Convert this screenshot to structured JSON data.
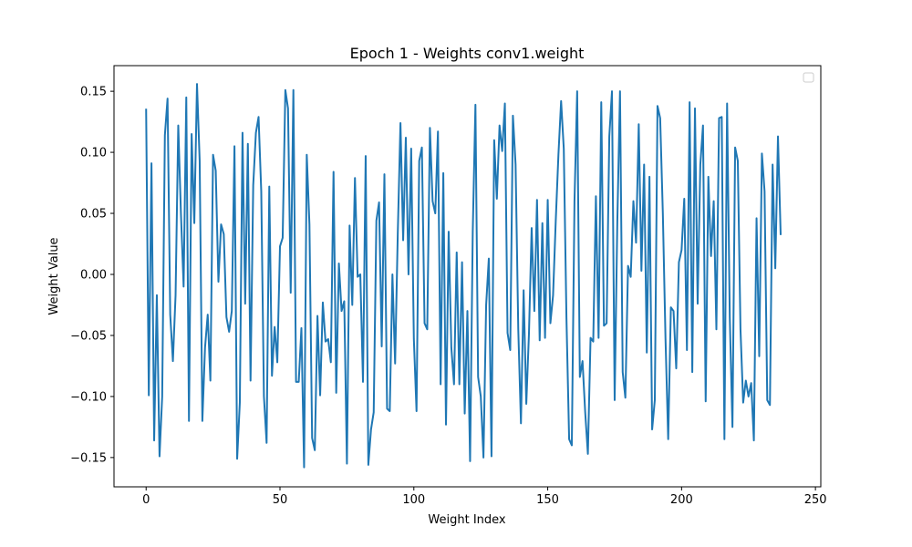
{
  "chart_data": {
    "type": "line",
    "title": "Epoch 1 - Weights conv1.weight",
    "xlabel": "Weight Index",
    "ylabel": "Weight Value",
    "xlim": [
      -12,
      252
    ],
    "ylim": [
      -0.174,
      0.171
    ],
    "xticks": [
      0,
      50,
      100,
      150,
      200,
      250
    ],
    "yticks": [
      -0.15,
      -0.1,
      -0.05,
      0.0,
      0.05,
      0.1,
      0.15
    ],
    "ytick_labels": [
      "−0.15",
      "−0.10",
      "−0.05",
      "0.00",
      "0.05",
      "0.10",
      "0.15"
    ],
    "legend": "top-right",
    "legend_entries": [],
    "series": [
      {
        "name": "conv1.weight",
        "color": "#1f77b4",
        "values": [
          0.135,
          -0.099,
          0.091,
          -0.136,
          -0.017,
          -0.149,
          -0.1,
          0.114,
          0.144,
          -0.033,
          -0.071,
          -0.017,
          0.122,
          0.05,
          -0.01,
          0.145,
          -0.12,
          0.115,
          0.042,
          0.156,
          0.093,
          -0.12,
          -0.06,
          -0.033,
          -0.087,
          0.098,
          0.085,
          -0.006,
          0.041,
          0.033,
          -0.035,
          -0.047,
          -0.03,
          0.105,
          -0.151,
          -0.105,
          0.116,
          -0.024,
          0.107,
          -0.087,
          0.073,
          0.116,
          0.129,
          0.068,
          -0.1,
          -0.138,
          0.072,
          -0.083,
          -0.043,
          -0.072,
          0.023,
          0.03,
          0.151,
          0.136,
          -0.015,
          0.151,
          -0.088,
          -0.088,
          -0.044,
          -0.158,
          0.098,
          0.041,
          -0.134,
          -0.144,
          -0.034,
          -0.099,
          -0.023,
          -0.055,
          -0.053,
          -0.072,
          0.084,
          -0.097,
          0.009,
          -0.03,
          -0.022,
          -0.155,
          0.04,
          -0.025,
          0.079,
          -0.002,
          0.0,
          -0.088,
          0.097,
          -0.156,
          -0.127,
          -0.113,
          0.044,
          0.059,
          -0.059,
          0.082,
          -0.11,
          -0.112,
          0.0,
          -0.073,
          0.034,
          0.124,
          0.028,
          0.112,
          0.0,
          0.103,
          -0.053,
          -0.112,
          0.093,
          0.104,
          -0.04,
          -0.045,
          0.12,
          0.06,
          0.05,
          0.117,
          -0.09,
          0.083,
          -0.123,
          0.035,
          -0.06,
          -0.09,
          0.018,
          -0.09,
          0.01,
          -0.114,
          -0.03,
          -0.153,
          0.035,
          0.139,
          -0.084,
          -0.1,
          -0.15,
          -0.025,
          0.013,
          -0.149,
          0.11,
          0.062,
          0.122,
          0.101,
          0.14,
          -0.048,
          -0.062,
          0.13,
          0.09,
          -0.045,
          -0.122,
          -0.013,
          -0.106,
          -0.048,
          0.038,
          -0.03,
          0.061,
          -0.054,
          0.042,
          -0.052,
          0.061,
          -0.04,
          -0.017,
          0.044,
          0.098,
          0.142,
          0.103,
          -0.036,
          -0.135,
          -0.14,
          0.06,
          0.15,
          -0.084,
          -0.071,
          -0.113,
          -0.147,
          -0.052,
          -0.055,
          0.064,
          -0.052,
          0.141,
          -0.042,
          -0.04,
          0.113,
          0.15,
          -0.103,
          0.043,
          0.15,
          -0.08,
          -0.101,
          0.007,
          -0.002,
          0.06,
          0.026,
          0.123,
          0.003,
          0.09,
          -0.064,
          0.08,
          -0.127,
          -0.103,
          0.138,
          0.128,
          0.05,
          -0.053,
          -0.135,
          -0.027,
          -0.03,
          -0.077,
          0.01,
          0.02,
          0.062,
          -0.062,
          0.141,
          -0.08,
          0.136,
          -0.024,
          0.09,
          0.122,
          -0.104,
          0.08,
          0.015,
          0.06,
          -0.045,
          0.128,
          0.129,
          -0.135,
          0.14,
          -0.035,
          -0.125,
          0.104,
          0.093,
          -0.045,
          -0.105,
          -0.087,
          -0.1,
          -0.089,
          -0.136,
          0.046,
          -0.067,
          0.099,
          0.068,
          -0.103,
          -0.107,
          0.09,
          0.005,
          0.113,
          0.033
        ]
      }
    ]
  }
}
